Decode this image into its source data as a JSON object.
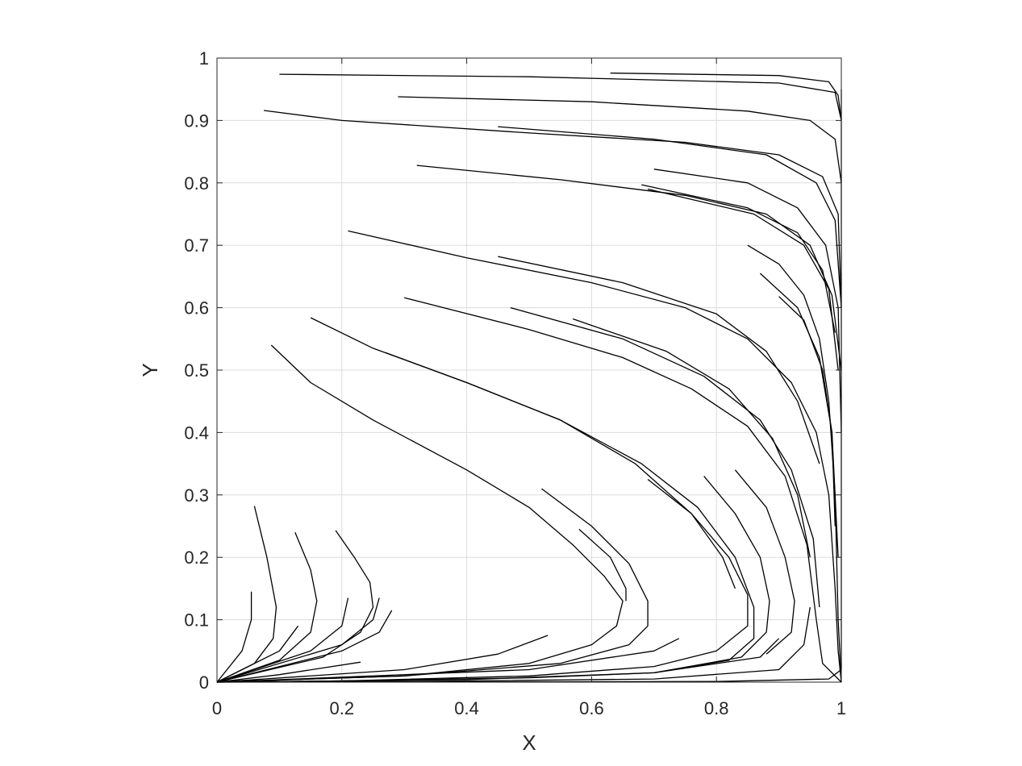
{
  "chart_data": {
    "type": "line",
    "subtype": "streamlines",
    "title": "",
    "xlabel": "X",
    "ylabel": "Y",
    "xlim": [
      0,
      1
    ],
    "ylim": [
      0,
      1
    ],
    "xticks": [
      0,
      0.2,
      0.4,
      0.6,
      0.8,
      1
    ],
    "xtick_labels": [
      "0",
      "0.2",
      "0.4",
      "0.6",
      "0.8",
      "1"
    ],
    "yticks": [
      0,
      0.1,
      0.2,
      0.3,
      0.4,
      0.5,
      0.6,
      0.7,
      0.8,
      0.9,
      1
    ],
    "ytick_labels": [
      "0",
      "0.1",
      "0.2",
      "0.3",
      "0.4",
      "0.5",
      "0.6",
      "0.7",
      "0.8",
      "0.9",
      "1"
    ],
    "grid": true,
    "colors": {
      "line": "#000000",
      "grid": "#dcdcdc",
      "axis": "#262626"
    },
    "series": [
      {
        "points": [
          [
            0.63,
            0.976
          ],
          [
            0.9,
            0.972
          ],
          [
            0.98,
            0.962
          ],
          [
            0.995,
            0.94
          ],
          [
            1,
            0.9
          ]
        ]
      },
      {
        "points": [
          [
            0.1,
            0.974
          ],
          [
            0.5,
            0.97
          ],
          [
            0.9,
            0.96
          ],
          [
            0.99,
            0.945
          ],
          [
            1,
            0.9
          ]
        ]
      },
      {
        "points": [
          [
            0.29,
            0.938
          ],
          [
            0.6,
            0.93
          ],
          [
            0.85,
            0.915
          ],
          [
            0.95,
            0.9
          ],
          [
            0.99,
            0.87
          ],
          [
            1,
            0.8
          ]
        ]
      },
      {
        "points": [
          [
            0.075,
            0.916
          ],
          [
            0.2,
            0.9
          ],
          [
            0.5,
            0.88
          ],
          [
            0.75,
            0.865
          ],
          [
            0.9,
            0.845
          ],
          [
            0.97,
            0.81
          ],
          [
            0.995,
            0.75
          ],
          [
            1,
            0.6
          ]
        ]
      },
      {
        "points": [
          [
            0.45,
            0.89
          ],
          [
            0.7,
            0.87
          ],
          [
            0.88,
            0.845
          ],
          [
            0.96,
            0.8
          ],
          [
            0.99,
            0.74
          ],
          [
            1,
            0.6
          ]
        ]
      },
      {
        "points": [
          [
            0.32,
            0.828
          ],
          [
            0.55,
            0.805
          ],
          [
            0.75,
            0.78
          ],
          [
            0.88,
            0.75
          ],
          [
            0.95,
            0.7
          ],
          [
            0.985,
            0.62
          ],
          [
            1,
            0.5
          ]
        ]
      },
      {
        "points": [
          [
            0.7,
            0.822
          ],
          [
            0.85,
            0.8
          ],
          [
            0.93,
            0.76
          ],
          [
            0.975,
            0.7
          ],
          [
            0.995,
            0.6
          ],
          [
            1,
            0.4
          ]
        ]
      },
      {
        "points": [
          [
            0.68,
            0.797
          ],
          [
            0.85,
            0.76
          ],
          [
            0.93,
            0.72
          ],
          [
            0.97,
            0.66
          ],
          [
            0.99,
            0.56
          ]
        ]
      },
      {
        "points": [
          [
            0.69,
            0.79
          ],
          [
            0.86,
            0.75
          ],
          [
            0.94,
            0.7
          ],
          [
            0.98,
            0.63
          ],
          [
            0.995,
            0.5
          ]
        ]
      },
      {
        "points": [
          [
            0.21,
            0.723
          ],
          [
            0.4,
            0.68
          ],
          [
            0.6,
            0.64
          ],
          [
            0.75,
            0.6
          ],
          [
            0.85,
            0.55
          ],
          [
            0.92,
            0.48
          ],
          [
            0.96,
            0.4
          ],
          [
            0.98,
            0.3
          ],
          [
            0.99,
            0.15
          ],
          [
            0.995,
            0.05
          ],
          [
            1,
            0
          ]
        ]
      },
      {
        "points": [
          [
            0.45,
            0.682
          ],
          [
            0.65,
            0.64
          ],
          [
            0.8,
            0.59
          ],
          [
            0.88,
            0.53
          ],
          [
            0.93,
            0.45
          ],
          [
            0.965,
            0.35
          ]
        ]
      },
      {
        "points": [
          [
            0.3,
            0.616
          ],
          [
            0.5,
            0.565
          ],
          [
            0.65,
            0.52
          ],
          [
            0.76,
            0.47
          ],
          [
            0.85,
            0.41
          ],
          [
            0.91,
            0.33
          ],
          [
            0.945,
            0.22
          ],
          [
            0.96,
            0.1
          ],
          [
            0.97,
            0.03
          ],
          [
            1,
            0
          ]
        ]
      },
      {
        "points": [
          [
            0.47,
            0.6
          ],
          [
            0.65,
            0.55
          ],
          [
            0.78,
            0.49
          ],
          [
            0.87,
            0.42
          ],
          [
            0.92,
            0.34
          ],
          [
            0.955,
            0.23
          ],
          [
            0.965,
            0.12
          ]
        ]
      },
      {
        "points": [
          [
            0.57,
            0.582
          ],
          [
            0.72,
            0.53
          ],
          [
            0.82,
            0.47
          ],
          [
            0.89,
            0.39
          ],
          [
            0.93,
            0.3
          ],
          [
            0.95,
            0.2
          ]
        ]
      },
      {
        "points": [
          [
            0.15,
            0.584
          ],
          [
            0.25,
            0.535
          ],
          [
            0.4,
            0.48
          ],
          [
            0.55,
            0.42
          ],
          [
            0.68,
            0.35
          ],
          [
            0.77,
            0.28
          ],
          [
            0.83,
            0.2
          ],
          [
            0.86,
            0.12
          ],
          [
            0.86,
            0.07
          ],
          [
            0.82,
            0.035
          ],
          [
            0.7,
            0.015
          ],
          [
            0.5,
            0.007
          ],
          [
            0.2,
            0.002
          ],
          [
            0,
            0
          ]
        ]
      },
      {
        "points": [
          [
            0.27,
            0.528
          ],
          [
            0.4,
            0.48
          ],
          [
            0.55,
            0.42
          ],
          [
            0.67,
            0.35
          ],
          [
            0.76,
            0.27
          ],
          [
            0.81,
            0.2
          ],
          [
            0.83,
            0.15
          ]
        ]
      },
      {
        "points": [
          [
            0.087,
            0.54
          ],
          [
            0.15,
            0.48
          ],
          [
            0.25,
            0.42
          ],
          [
            0.4,
            0.34
          ],
          [
            0.5,
            0.28
          ],
          [
            0.57,
            0.22
          ],
          [
            0.62,
            0.17
          ],
          [
            0.65,
            0.13
          ],
          [
            0.64,
            0.09
          ],
          [
            0.6,
            0.06
          ],
          [
            0.5,
            0.03
          ],
          [
            0.3,
            0.01
          ],
          [
            0,
            0
          ]
        ]
      },
      {
        "points": [
          [
            0.52,
            0.31
          ],
          [
            0.6,
            0.25
          ],
          [
            0.66,
            0.19
          ],
          [
            0.69,
            0.13
          ],
          [
            0.69,
            0.09
          ],
          [
            0.66,
            0.06
          ],
          [
            0.55,
            0.03
          ],
          [
            0.3,
            0.01
          ],
          [
            0,
            0
          ]
        ]
      },
      {
        "points": [
          [
            0.58,
            0.245
          ],
          [
            0.63,
            0.2
          ],
          [
            0.655,
            0.15
          ],
          [
            0.655,
            0.13
          ]
        ]
      },
      {
        "points": [
          [
            0.69,
            0.325
          ],
          [
            0.76,
            0.27
          ],
          [
            0.82,
            0.2
          ],
          [
            0.85,
            0.14
          ],
          [
            0.85,
            0.09
          ],
          [
            0.8,
            0.05
          ],
          [
            0.7,
            0.025
          ],
          [
            0.5,
            0.01
          ],
          [
            0.2,
            0.002
          ],
          [
            0,
            0
          ]
        ]
      },
      {
        "points": [
          [
            0.78,
            0.33
          ],
          [
            0.83,
            0.27
          ],
          [
            0.87,
            0.2
          ],
          [
            0.885,
            0.13
          ],
          [
            0.88,
            0.08
          ],
          [
            0.84,
            0.04
          ],
          [
            0.7,
            0.015
          ]
        ]
      },
      {
        "points": [
          [
            0.83,
            0.34
          ],
          [
            0.88,
            0.28
          ],
          [
            0.91,
            0.2
          ],
          [
            0.925,
            0.13
          ],
          [
            0.92,
            0.08
          ],
          [
            0.88,
            0.045
          ]
        ]
      },
      {
        "points": [
          [
            0.85,
            0.7
          ],
          [
            0.9,
            0.67
          ],
          [
            0.94,
            0.62
          ],
          [
            0.965,
            0.55
          ],
          [
            0.98,
            0.45
          ],
          [
            0.99,
            0.3
          ],
          [
            0.995,
            0.1
          ],
          [
            1,
            0
          ]
        ]
      },
      {
        "points": [
          [
            0.87,
            0.655
          ],
          [
            0.93,
            0.6
          ],
          [
            0.965,
            0.52
          ],
          [
            0.985,
            0.4
          ],
          [
            0.995,
            0.2
          ]
        ]
      },
      {
        "points": [
          [
            0.9,
            0.618
          ],
          [
            0.94,
            0.58
          ],
          [
            0.97,
            0.5
          ],
          [
            0.985,
            0.4
          ],
          [
            0.99,
            0.25
          ]
        ]
      },
      {
        "points": [
          [
            0.06,
            0.282
          ],
          [
            0.08,
            0.2
          ],
          [
            0.095,
            0.12
          ],
          [
            0.09,
            0.07
          ],
          [
            0.06,
            0.03
          ],
          [
            0,
            0
          ]
        ]
      },
      {
        "points": [
          [
            0.055,
            0.145
          ],
          [
            0.055,
            0.1
          ],
          [
            0.04,
            0.05
          ],
          [
            0,
            0
          ]
        ]
      },
      {
        "points": [
          [
            0.125,
            0.24
          ],
          [
            0.15,
            0.18
          ],
          [
            0.16,
            0.13
          ],
          [
            0.15,
            0.08
          ],
          [
            0.1,
            0.035
          ],
          [
            0,
            0
          ]
        ]
      },
      {
        "points": [
          [
            0.13,
            0.09
          ],
          [
            0.1,
            0.05
          ],
          [
            0,
            0
          ]
        ]
      },
      {
        "points": [
          [
            0.19,
            0.243
          ],
          [
            0.22,
            0.2
          ],
          [
            0.245,
            0.16
          ],
          [
            0.25,
            0.12
          ],
          [
            0.23,
            0.08
          ],
          [
            0.17,
            0.04
          ],
          [
            0,
            0
          ]
        ]
      },
      {
        "points": [
          [
            0.21,
            0.135
          ],
          [
            0.2,
            0.09
          ],
          [
            0.15,
            0.05
          ],
          [
            0,
            0
          ]
        ]
      },
      {
        "points": [
          [
            0.26,
            0.135
          ],
          [
            0.25,
            0.1
          ],
          [
            0.2,
            0.06
          ],
          [
            0,
            0
          ]
        ]
      },
      {
        "points": [
          [
            0.28,
            0.115
          ],
          [
            0.26,
            0.08
          ],
          [
            0.2,
            0.05
          ],
          [
            0,
            0
          ]
        ]
      },
      {
        "points": [
          [
            0.23,
            0.032
          ],
          [
            0.1,
            0.012
          ],
          [
            0,
            0
          ]
        ]
      },
      {
        "points": [
          [
            0.53,
            0.075
          ],
          [
            0.45,
            0.045
          ],
          [
            0.3,
            0.02
          ],
          [
            0,
            0
          ]
        ]
      },
      {
        "points": [
          [
            0.74,
            0.07
          ],
          [
            0.7,
            0.05
          ],
          [
            0.5,
            0.02
          ],
          [
            0,
            0
          ]
        ]
      },
      {
        "points": [
          [
            0.9,
            0.07
          ],
          [
            0.87,
            0.04
          ],
          [
            0.7,
            0.015
          ],
          [
            0.4,
            0.004
          ],
          [
            0,
            0
          ]
        ]
      },
      {
        "points": [
          [
            0.95,
            0.12
          ],
          [
            0.94,
            0.06
          ],
          [
            0.9,
            0.02
          ],
          [
            0.7,
            0.005
          ],
          [
            0.3,
            0.001
          ],
          [
            0,
            0
          ]
        ]
      },
      {
        "points": [
          [
            1,
            0.95
          ],
          [
            1,
            0.02
          ],
          [
            0.98,
            0.005
          ],
          [
            0.8,
            0.001
          ],
          [
            0,
            0
          ]
        ]
      }
    ]
  }
}
